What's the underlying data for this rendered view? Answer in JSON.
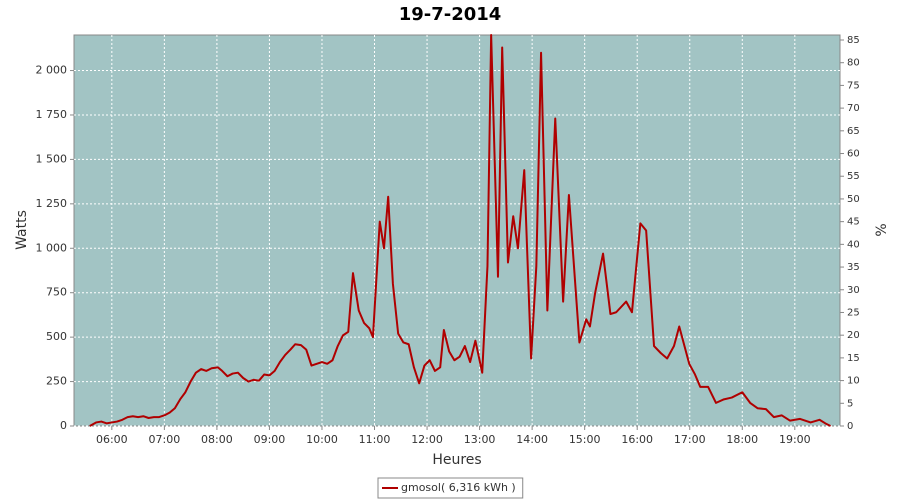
{
  "chart_data": {
    "type": "line",
    "title": "19-7-2014",
    "x_label": "Heures",
    "y_label": "Watts",
    "y2_label": "%",
    "xlim": [
      5.28,
      19.86
    ],
    "xticks": [
      {
        "value": 6,
        "label": "06:00"
      },
      {
        "value": 7,
        "label": "07:00"
      },
      {
        "value": 8,
        "label": "08:00"
      },
      {
        "value": 9,
        "label": "09:00"
      },
      {
        "value": 10,
        "label": "10:00"
      },
      {
        "value": 11,
        "label": "11:00"
      },
      {
        "value": 12,
        "label": "12:00"
      },
      {
        "value": 13,
        "label": "13:00"
      },
      {
        "value": 14,
        "label": "14:00"
      },
      {
        "value": 15,
        "label": "15:00"
      },
      {
        "value": 16,
        "label": "16:00"
      },
      {
        "value": 17,
        "label": "17:00"
      },
      {
        "value": 18,
        "label": "18:00"
      },
      {
        "value": 19,
        "label": "19:00"
      }
    ],
    "ylim": [
      0,
      2200
    ],
    "yticks": [
      0,
      250,
      500,
      750,
      {
        "value": 1000,
        "label": "1 000"
      },
      {
        "value": 1250,
        "label": "1 250"
      },
      {
        "value": 1500,
        "label": "1 500"
      },
      {
        "value": 1750,
        "label": "1 750"
      },
      {
        "value": 2000,
        "label": "2 000"
      }
    ],
    "y2lim": [
      0,
      86.1
    ],
    "y2ticks": [
      0,
      5,
      10,
      15,
      20,
      25,
      30,
      35,
      40,
      45,
      50,
      55,
      60,
      65,
      70,
      75,
      80,
      85
    ],
    "grid": true,
    "plot_background": "#a2c4c4",
    "legend": "bottom",
    "x": [
      5.58,
      5.7,
      5.8,
      5.9,
      6.0,
      6.1,
      6.2,
      6.3,
      6.4,
      6.5,
      6.6,
      6.7,
      6.8,
      6.9,
      7.0,
      7.1,
      7.2,
      7.3,
      7.4,
      7.5,
      7.6,
      7.7,
      7.8,
      7.9,
      8.02,
      8.1,
      8.2,
      8.3,
      8.4,
      8.5,
      8.6,
      8.7,
      8.8,
      8.9,
      9.0,
      9.1,
      9.2,
      9.3,
      9.4,
      9.49,
      9.6,
      9.7,
      9.8,
      9.9,
      10.0,
      10.1,
      10.2,
      10.3,
      10.4,
      10.5,
      10.59,
      10.7,
      10.8,
      10.9,
      10.97,
      11.1,
      11.18,
      11.26,
      11.35,
      11.45,
      11.55,
      11.65,
      11.75,
      11.85,
      11.95,
      12.05,
      12.15,
      12.25,
      12.32,
      12.42,
      12.52,
      12.62,
      12.72,
      12.82,
      12.92,
      13.05,
      13.15,
      13.22,
      13.35,
      13.43,
      13.54,
      13.64,
      13.73,
      13.85,
      13.98,
      14.08,
      14.17,
      14.29,
      14.44,
      14.59,
      14.7,
      14.9,
      15.03,
      15.1,
      15.2,
      15.35,
      15.49,
      15.6,
      15.79,
      15.9,
      16.06,
      16.17,
      16.32,
      16.45,
      16.57,
      16.7,
      16.8,
      16.99,
      17.1,
      17.2,
      17.35,
      17.5,
      17.65,
      17.8,
      18.0,
      18.15,
      18.29,
      18.45,
      18.6,
      18.75,
      18.91,
      19.1,
      19.3,
      19.47,
      19.58,
      19.68
    ],
    "series": [
      {
        "name": "gmosol( 6,316 kWh )",
        "color": "#b00000",
        "values": [
          0,
          20,
          25,
          15,
          20,
          25,
          35,
          50,
          55,
          50,
          55,
          45,
          50,
          50,
          60,
          75,
          100,
          150,
          190,
          250,
          300,
          320,
          310,
          325,
          330,
          310,
          280,
          295,
          300,
          270,
          250,
          260,
          255,
          290,
          285,
          310,
          360,
          400,
          430,
          460,
          455,
          430,
          340,
          350,
          360,
          350,
          370,
          450,
          510,
          530,
          860,
          650,
          580,
          550,
          500,
          1150,
          1000,
          1290,
          800,
          520,
          470,
          460,
          330,
          240,
          340,
          370,
          310,
          330,
          540,
          420,
          370,
          390,
          450,
          360,
          480,
          300,
          900,
          2200,
          840,
          2130,
          920,
          1180,
          1000,
          1440,
          380,
          900,
          2100,
          650,
          1730,
          700,
          1300,
          470,
          600,
          560,
          750,
          970,
          630,
          640,
          700,
          640,
          1140,
          1100,
          450,
          410,
          380,
          450,
          560,
          350,
          290,
          220,
          220,
          130,
          150,
          160,
          190,
          130,
          100,
          95,
          50,
          60,
          30,
          40,
          20,
          35,
          15,
          0
        ]
      }
    ]
  }
}
